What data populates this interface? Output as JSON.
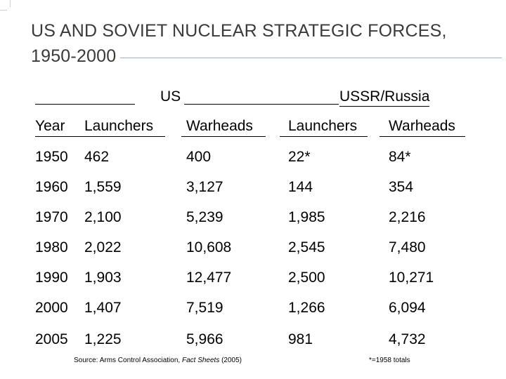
{
  "title": {
    "line1": "US AND SOVIET NUCLEAR STRATEGIC FORCES,",
    "line2": "1950-2000"
  },
  "groups": {
    "us": "US",
    "ussr": "USSR/Russia"
  },
  "headers": {
    "year": "Year",
    "us_launchers": "Launchers",
    "us_warheads": "Warheads",
    "ussr_launchers": "Launchers",
    "ussr_warheads": "Warheads"
  },
  "rows": [
    {
      "year": "1950",
      "us_launchers": "462",
      "us_warheads": "400",
      "ussr_launchers": "22*",
      "ussr_warheads": "84*"
    },
    {
      "year": "1960",
      "us_launchers": "1,559",
      "us_warheads": "3,127",
      "ussr_launchers": "144",
      "ussr_warheads": "354"
    },
    {
      "year": "1970",
      "us_launchers": "2,100",
      "us_warheads": "5,239",
      "ussr_launchers": "1,985",
      "ussr_warheads": "2,216"
    },
    {
      "year": "1980",
      "us_launchers": "2,022",
      "us_warheads": "10,608",
      "ussr_launchers": "2,545",
      "ussr_warheads": "7,480"
    },
    {
      "year": "1990",
      "us_launchers": "1,903",
      "us_warheads": "12,477",
      "ussr_launchers": "2,500",
      "ussr_warheads": "10,271"
    },
    {
      "year": "2000",
      "us_launchers": "1,407",
      "us_warheads": "7,519",
      "ussr_launchers": "1,266",
      "ussr_warheads": "6,094"
    },
    {
      "year": "2005",
      "us_launchers": "1,225",
      "us_warheads": "5,966",
      "ussr_launchers": "981",
      "ussr_warheads": "4,732"
    }
  ],
  "source": {
    "prefix": "Source: Arms Control Association, ",
    "publication": "Fact Sheets",
    "suffix": " (2005)"
  },
  "footnote": "*=1958 totals"
}
